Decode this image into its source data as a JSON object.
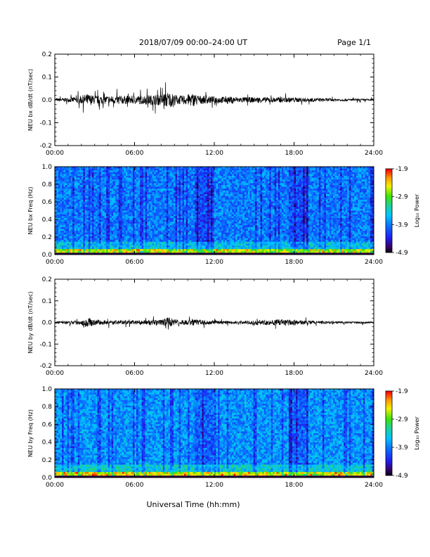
{
  "header": {
    "title": "2018/07/09  00:00–24:00 UT",
    "page": "Page 1/1"
  },
  "xlabel": "Universal Time (hh:mm)",
  "chart_data": [
    {
      "type": "line",
      "ylabel": "NEU bx dB/dt (nT/sec)",
      "xlim": [
        0,
        24
      ],
      "ylim": [
        -0.2,
        0.2
      ],
      "x_ticks": [
        "00:00",
        "06:00",
        "12:00",
        "18:00",
        "24:00"
      ],
      "y_ticks": [
        "0.2",
        "0.1",
        "0.0",
        "-0.1",
        "-0.2"
      ],
      "series": [
        {
          "x": [
            0,
            1,
            2,
            2.4,
            3,
            4,
            5,
            6,
            7,
            8,
            8.5,
            9,
            9.5,
            10,
            10.3,
            11,
            12,
            13,
            14,
            15,
            16,
            17,
            18,
            19,
            20,
            21,
            22,
            23,
            24
          ],
          "values": [
            0.01,
            0.015,
            0.03,
            0.045,
            0.03,
            0.03,
            0.03,
            0.03,
            0.035,
            0.04,
            0.06,
            0.04,
            0.03,
            0.04,
            0.05,
            0.03,
            0.025,
            0.025,
            0.02,
            0.02,
            0.02,
            0.02,
            0.018,
            0.015,
            0.012,
            0.01,
            0.008,
            0.008,
            0.008
          ]
        }
      ]
    },
    {
      "type": "heatmap",
      "ylabel": "NEU bx Freq (Hz)",
      "xlim": [
        0,
        24
      ],
      "ylim": [
        0,
        1
      ],
      "x_ticks": [
        "00:00",
        "06:00",
        "12:00",
        "18:00",
        "24:00"
      ],
      "y_ticks": [
        "1.0",
        "0.8",
        "0.6",
        "0.4",
        "0.2",
        "0.0"
      ],
      "colorbar": {
        "label": "Log₁₀ Power",
        "ticks": [
          "-1.9",
          "-2.9",
          "-3.9",
          "-4.9"
        ],
        "range": [
          -4.9,
          -1.9
        ]
      }
    },
    {
      "type": "line",
      "ylabel": "NEU by dB/dt (nT/sec)",
      "xlim": [
        0,
        24
      ],
      "ylim": [
        -0.2,
        0.2
      ],
      "x_ticks": [
        "00:00",
        "06:00",
        "12:00",
        "18:00",
        "24:00"
      ],
      "y_ticks": [
        "0.2",
        "0.1",
        "0.0",
        "-0.1",
        "-0.2"
      ],
      "series": [
        {
          "x": [
            0,
            1,
            2,
            2.4,
            3,
            4,
            5,
            6,
            7,
            8,
            8.5,
            9,
            9.5,
            10,
            10.3,
            11,
            12,
            13,
            14,
            15,
            16,
            17,
            18,
            19,
            20,
            21,
            22,
            23,
            24
          ],
          "values": [
            0.01,
            0.012,
            0.02,
            0.04,
            0.02,
            0.018,
            0.015,
            0.015,
            0.018,
            0.02,
            0.045,
            0.025,
            0.02,
            0.02,
            0.025,
            0.02,
            0.012,
            0.012,
            0.012,
            0.015,
            0.02,
            0.025,
            0.02,
            0.015,
            0.012,
            0.01,
            0.008,
            0.008,
            0.008
          ]
        }
      ]
    },
    {
      "type": "heatmap",
      "ylabel": "NEU by Freq (Hz)",
      "xlim": [
        0,
        24
      ],
      "ylim": [
        0,
        1
      ],
      "x_ticks": [
        "00:00",
        "06:00",
        "12:00",
        "18:00",
        "24:00"
      ],
      "y_ticks": [
        "1.0",
        "0.8",
        "0.6",
        "0.4",
        "0.2",
        "0.0"
      ],
      "colorbar": {
        "label": "Log₁₀ Power",
        "ticks": [
          "-1.9",
          "-2.9",
          "-3.9",
          "-4.9"
        ],
        "range": [
          -4.9,
          -1.9
        ]
      }
    }
  ]
}
